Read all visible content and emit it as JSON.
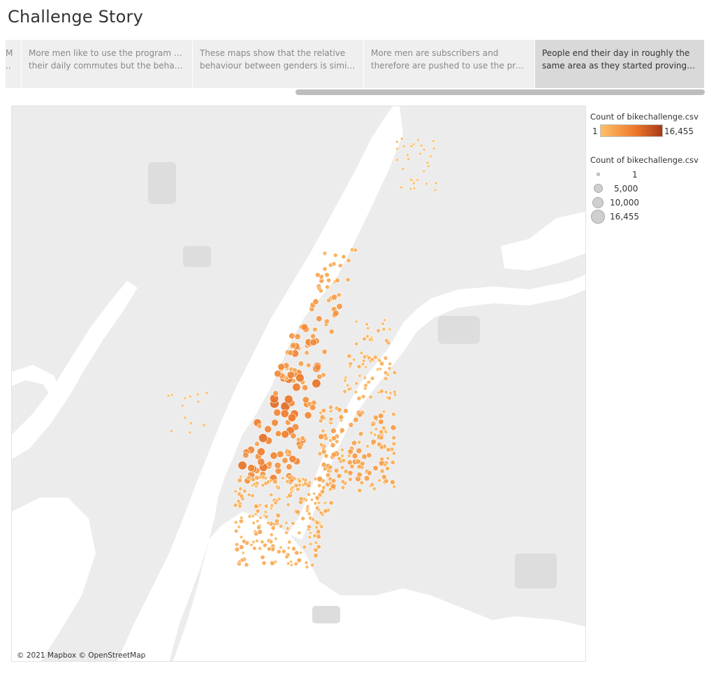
{
  "story": {
    "title": "Challenge Story",
    "points": [
      {
        "line1": "M",
        "line2": "..",
        "active": false
      },
      {
        "line1": "More men like to use the program for",
        "line2": "their daily commutes but the behavio..",
        "active": false
      },
      {
        "line1": "These maps show that the relative",
        "line2": "behaviour between genders is similar,..",
        "active": false
      },
      {
        "line1": "More men are subscribers and",
        "line2": "therefore are pushed to use the progr..",
        "active": false
      },
      {
        "line1": "People end their day in roughly the",
        "line2": "same area as they started proving thi..",
        "active": true
      }
    ]
  },
  "map": {
    "attribution": "© 2021 Mapbox © OpenStreetMap",
    "colors": {
      "land": "#ececec",
      "water": "#ffffff",
      "park": "#dcdcdc",
      "ramp_low": "#fcc068",
      "ramp_mid": "#ee7a2b",
      "ramp_high": "#a83a16"
    }
  },
  "legend": {
    "color": {
      "title": "Count of bikechallenge.csv",
      "min_label": "1",
      "max_label": "16,455"
    },
    "size": {
      "title": "Count of bikechallenge.csv",
      "items": [
        {
          "label": "1",
          "value": 1
        },
        {
          "label": "5,000",
          "value": 5000
        },
        {
          "label": "10,000",
          "value": 10000
        },
        {
          "label": "16,455",
          "value": 16455
        }
      ]
    }
  }
}
